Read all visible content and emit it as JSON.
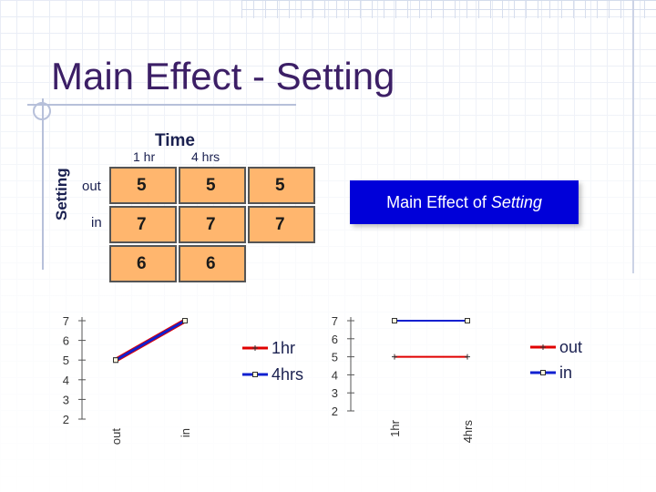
{
  "slide": {
    "title": "Main Effect - Setting"
  },
  "design_table": {
    "time_label": "Time",
    "setting_label": "Setting",
    "columns": [
      "1 hr",
      "4 hrs"
    ],
    "rows": [
      "out",
      "in"
    ],
    "cells": [
      [
        "5",
        "5",
        "5"
      ],
      [
        "7",
        "7",
        "7"
      ],
      [
        "6",
        "6"
      ]
    ]
  },
  "callout": {
    "text_prefix": "Main Effect of ",
    "text_emphasis": "Setting"
  },
  "colors": {
    "table_fill": "#ffb66e",
    "callout_bg": "#0000d9",
    "series_red": "#e00000",
    "series_blue": "#1020d0",
    "title": "#3c1f66"
  },
  "chart_data": [
    {
      "type": "line",
      "categories": [
        "out",
        "in"
      ],
      "ylim": [
        2,
        7
      ],
      "yticks": [
        "2",
        "3",
        "4",
        "5",
        "6",
        "7"
      ],
      "series": [
        {
          "name": "1hr",
          "values": [
            5,
            7
          ],
          "color": "#e00000"
        },
        {
          "name": "4hrs",
          "values": [
            5,
            7
          ],
          "color": "#1020d0"
        }
      ],
      "legend": "right"
    },
    {
      "type": "line",
      "categories": [
        "1hr",
        "4hrs"
      ],
      "ylim": [
        2,
        7
      ],
      "yticks": [
        "2",
        "3",
        "4",
        "5",
        "6",
        "7"
      ],
      "series": [
        {
          "name": "out",
          "values": [
            5,
            5
          ],
          "color": "#e00000"
        },
        {
          "name": "in",
          "values": [
            7,
            7
          ],
          "color": "#1020d0"
        }
      ],
      "legend": "right"
    }
  ]
}
